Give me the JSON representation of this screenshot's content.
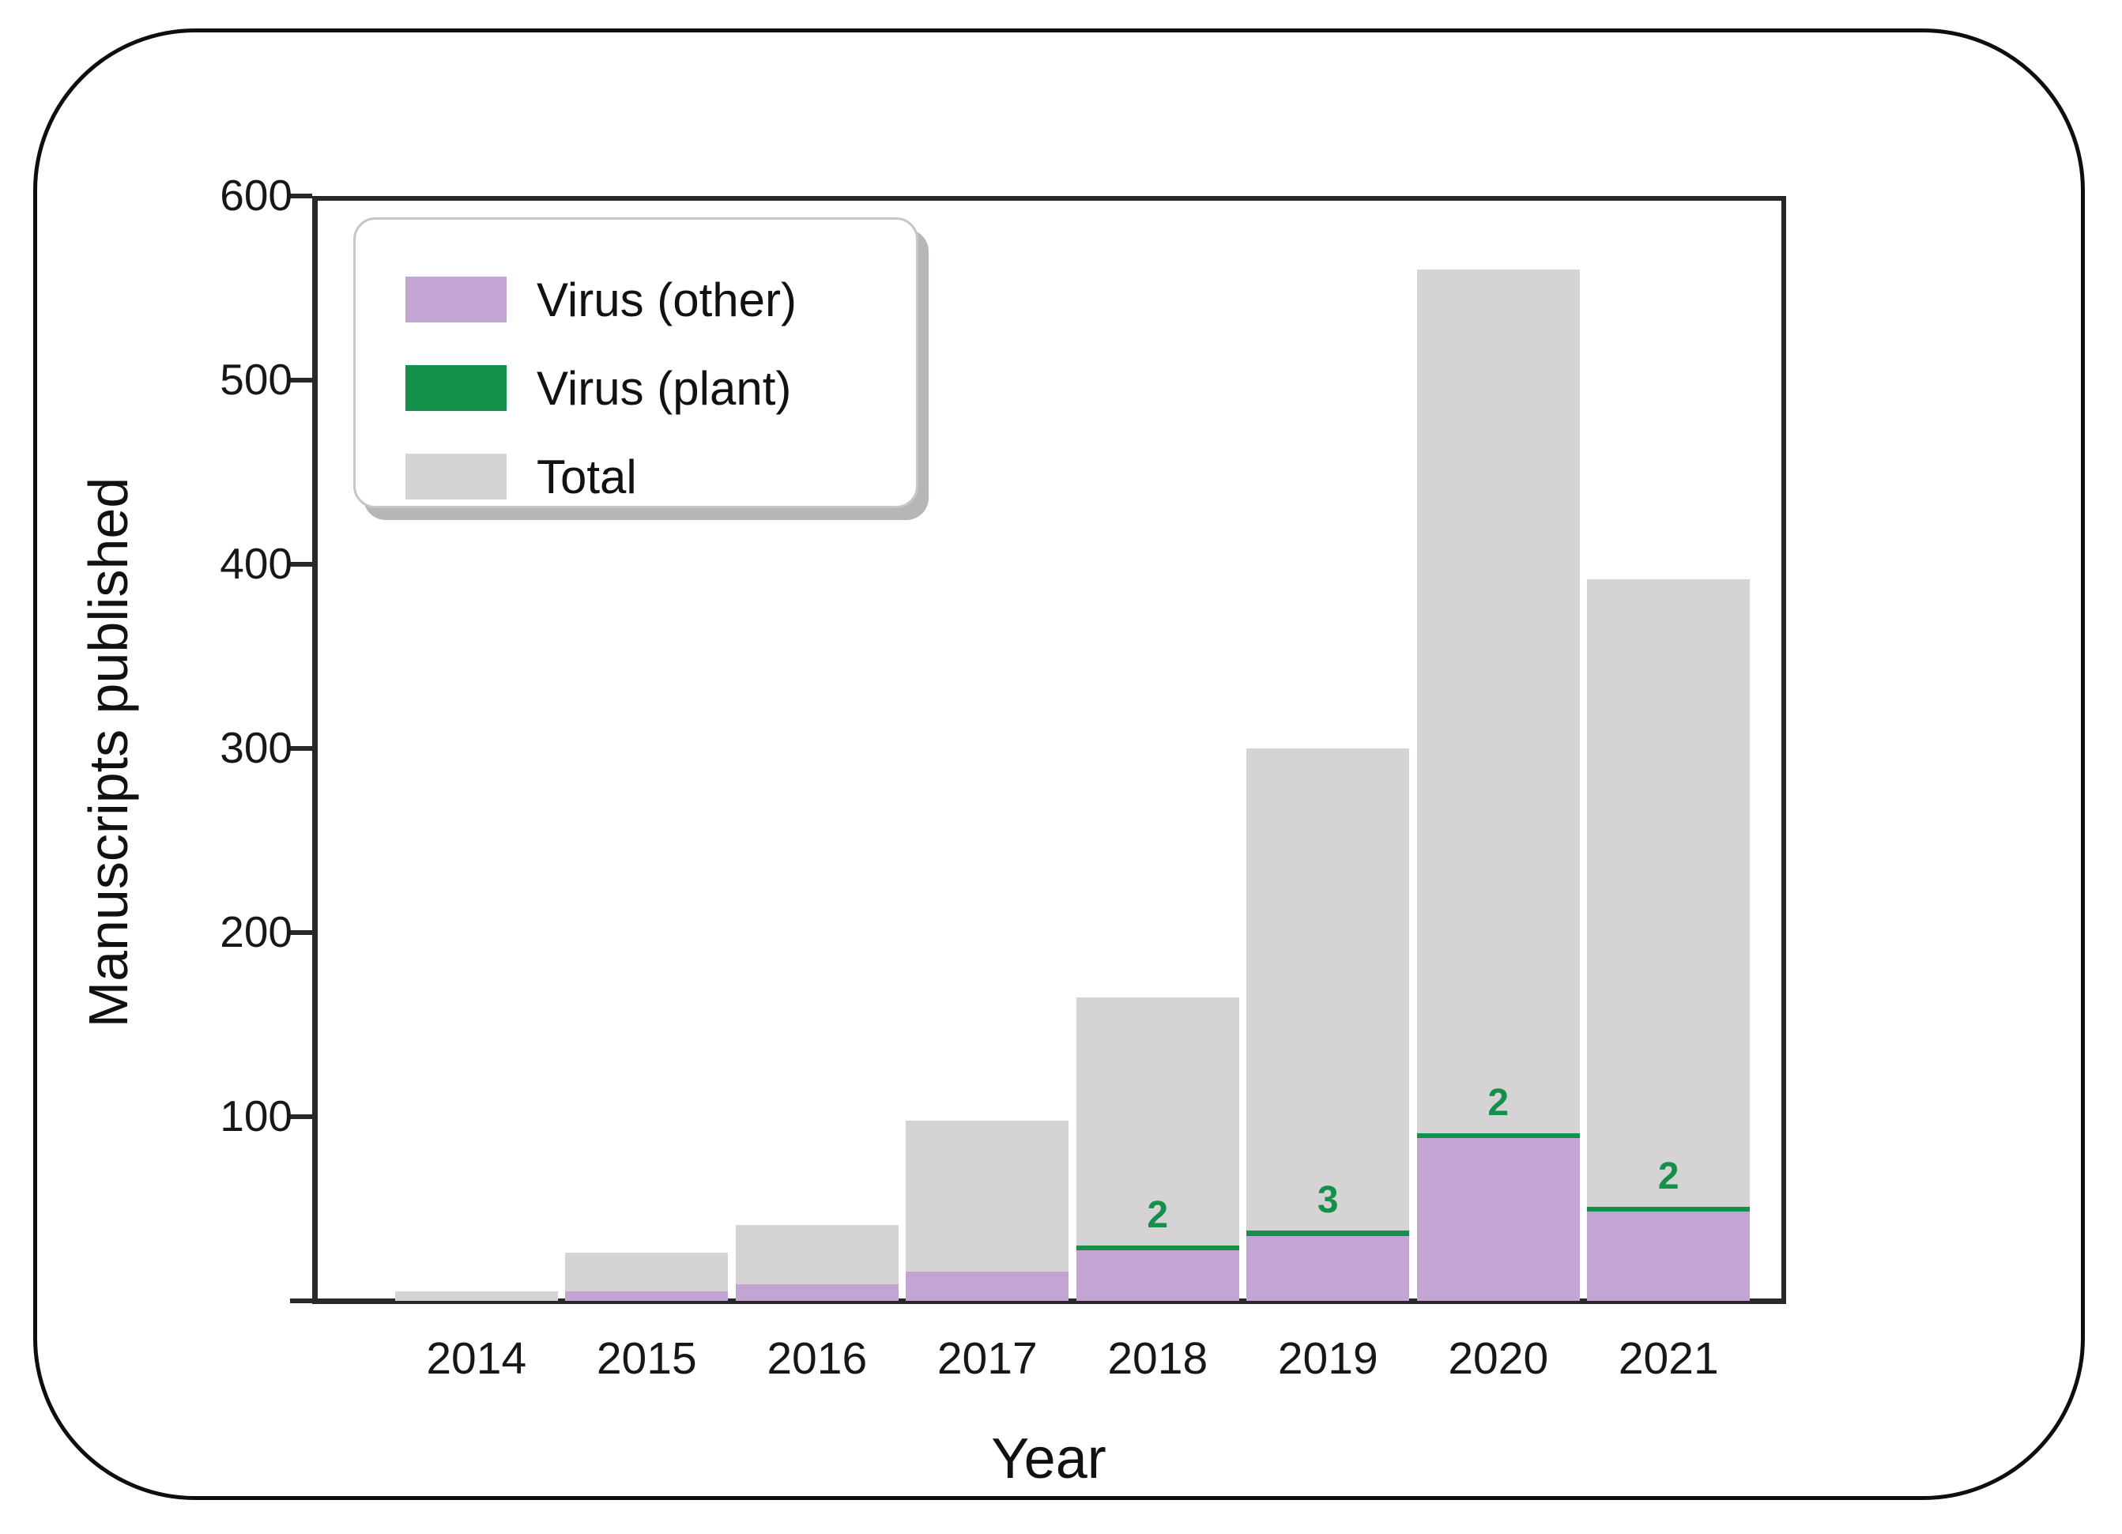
{
  "figure": {
    "background": "#ffffff",
    "frame_color": "#0e0e0e",
    "axis_color": "#2a272b",
    "y_axis": {
      "label": "Manuscripts published",
      "tick_values": [
        100,
        200,
        300,
        400,
        500,
        600
      ],
      "range": [
        0,
        600
      ]
    },
    "x_axis": {
      "label": "Year",
      "categories": [
        "2014",
        "2015",
        "2016",
        "2017",
        "2018",
        "2019",
        "2020",
        "2021"
      ]
    },
    "legend": {
      "items": [
        {
          "label": "Virus (other)",
          "color": "#c2a5d2"
        },
        {
          "label": "Virus (plant)",
          "color": "#15904a"
        },
        {
          "label": "Total",
          "color": "#d5d3d4"
        }
      ]
    }
  },
  "chart_data": {
    "type": "bar",
    "title": "",
    "xlabel": "Year",
    "ylabel": "Manuscripts published",
    "categories": [
      "2014",
      "2015",
      "2016",
      "2017",
      "2018",
      "2019",
      "2020",
      "2021"
    ],
    "series": [
      {
        "name": "Total",
        "color": "#d5d3d4",
        "values": [
          5,
          26,
          41,
          98,
          165,
          300,
          560,
          392
        ]
      },
      {
        "name": "Virus (other)",
        "color": "#c2a5d2",
        "values": [
          0,
          5,
          9,
          16,
          28,
          35,
          89,
          49
        ]
      },
      {
        "name": "Virus (plant)",
        "color": "#15904a",
        "values": [
          0,
          0,
          0,
          0,
          2,
          3,
          2,
          2
        ]
      }
    ],
    "annotations": [
      {
        "category": "2018",
        "text": "2",
        "color": "#15904a"
      },
      {
        "category": "2019",
        "text": "3",
        "color": "#15904a"
      },
      {
        "category": "2020",
        "text": "2",
        "color": "#15904a"
      },
      {
        "category": "2021",
        "text": "2",
        "color": "#15904a"
      }
    ],
    "ylim": [
      0,
      600
    ],
    "grid": false,
    "legend_position": "upper left",
    "bar_style": "overlaid (Total behind, Virus other in front, Virus plant segment stacked on top of Virus other)"
  }
}
